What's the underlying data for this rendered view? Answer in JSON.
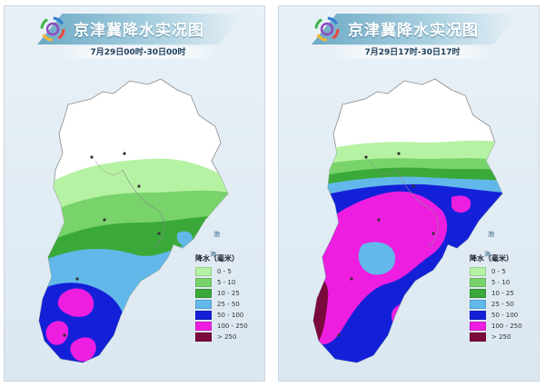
{
  "panels": [
    {
      "title": "京津冀降水实况图",
      "subtitle": "7月29日00时-30日00时",
      "sea_label": "海",
      "sea_label_2": "渤"
    },
    {
      "title": "京津冀降水实况图",
      "subtitle": "7月29日17时-30日17时",
      "sea_label": "海",
      "sea_label_2": "渤"
    }
  ],
  "legend": {
    "title": "降水（毫米）",
    "items": [
      {
        "label": "0 - 5",
        "color": "#b6f2a3"
      },
      {
        "label": "5 - 10",
        "color": "#78d36b"
      },
      {
        "label": "10 - 25",
        "color": "#3aa93a"
      },
      {
        "label": "25 - 50",
        "color": "#62b8ea"
      },
      {
        "label": "50 - 100",
        "color": "#1420d8"
      },
      {
        "label": "100 - 250",
        "color": "#ee1ee0"
      },
      {
        "label": "> 250",
        "color": "#7a0a3a"
      }
    ]
  },
  "colors": {
    "no_rain": "#ffffff",
    "border": "#8a8a8a",
    "banner_accent": "#5fa2c2"
  },
  "icons": [
    "meteorological-logo-icon",
    "city-marker-icon"
  ]
}
